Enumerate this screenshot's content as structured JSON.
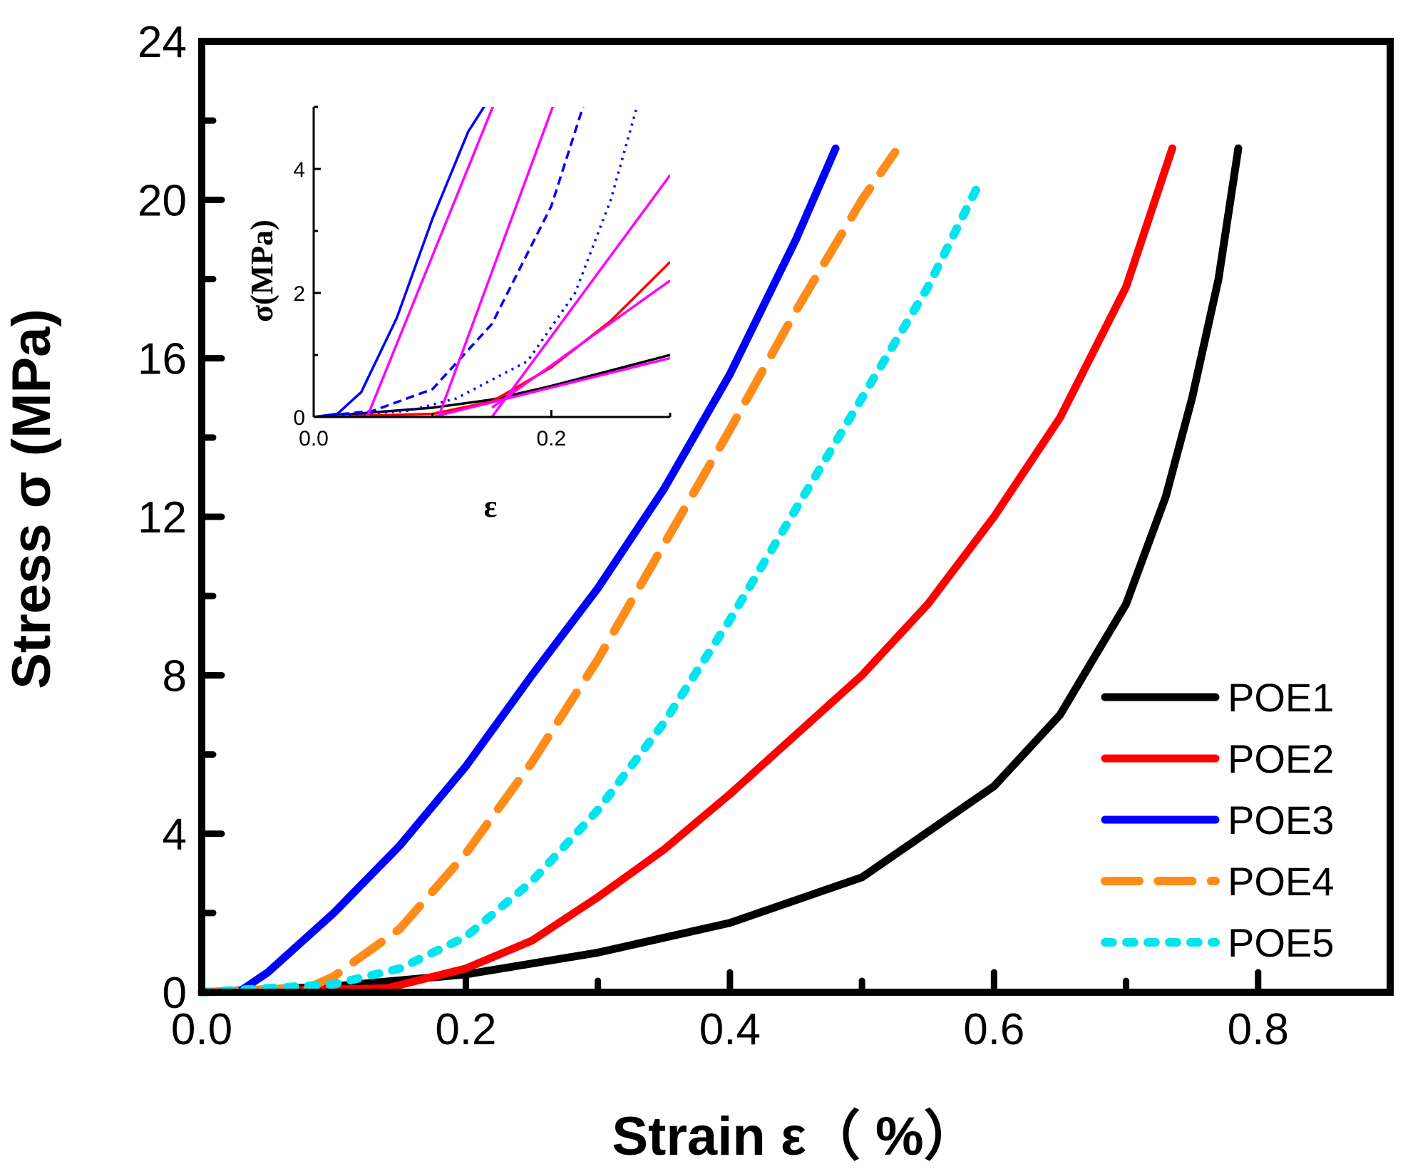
{
  "chart_data": [
    {
      "type": "line",
      "title": "",
      "xlabel": "Strain ε（ %）",
      "ylabel": "Stress σ (MPa)",
      "xlim": [
        0.0,
        0.9
      ],
      "ylim": [
        0,
        24
      ],
      "x_ticks": [
        "0.0",
        "0.2",
        "0.4",
        "0.6",
        "0.8"
      ],
      "y_ticks": [
        "0",
        "4",
        "8",
        "12",
        "16",
        "20",
        "24"
      ],
      "grid": false,
      "legend": "bottom-right",
      "series": [
        {
          "name": "POE1",
          "color": "#000000",
          "style": "solid",
          "points": [
            [
              0.0,
              0
            ],
            [
              0.1,
              0.15
            ],
            [
              0.2,
              0.45
            ],
            [
              0.3,
              1.0
            ],
            [
              0.4,
              1.75
            ],
            [
              0.5,
              2.9
            ],
            [
              0.6,
              5.2
            ],
            [
              0.65,
              7.0
            ],
            [
              0.7,
              9.8
            ],
            [
              0.73,
              12.5
            ],
            [
              0.75,
              15.0
            ],
            [
              0.77,
              18.0
            ],
            [
              0.785,
              21.3
            ]
          ]
        },
        {
          "name": "POE2",
          "color": "#ff0000",
          "style": "solid",
          "points": [
            [
              0.0,
              0
            ],
            [
              0.14,
              0.1
            ],
            [
              0.2,
              0.6
            ],
            [
              0.25,
              1.3
            ],
            [
              0.3,
              2.4
            ],
            [
              0.35,
              3.6
            ],
            [
              0.4,
              5.0
            ],
            [
              0.45,
              6.5
            ],
            [
              0.5,
              8.0
            ],
            [
              0.55,
              9.8
            ],
            [
              0.6,
              12.0
            ],
            [
              0.65,
              14.5
            ],
            [
              0.7,
              17.8
            ],
            [
              0.735,
              21.3
            ]
          ]
        },
        {
          "name": "POE3",
          "color": "#0000ff",
          "style": "solid",
          "points": [
            [
              0.0,
              0
            ],
            [
              0.03,
              0.05
            ],
            [
              0.05,
              0.5
            ],
            [
              0.1,
              2.0
            ],
            [
              0.15,
              3.7
            ],
            [
              0.2,
              5.7
            ],
            [
              0.25,
              8.0
            ],
            [
              0.3,
              10.2
            ],
            [
              0.35,
              12.7
            ],
            [
              0.4,
              15.6
            ],
            [
              0.45,
              19.0
            ],
            [
              0.48,
              21.3
            ]
          ]
        },
        {
          "name": "POE4",
          "color": "#ff8c1a",
          "style": "dashed",
          "points": [
            [
              0.0,
              0
            ],
            [
              0.08,
              0.1
            ],
            [
              0.1,
              0.4
            ],
            [
              0.15,
              1.6
            ],
            [
              0.2,
              3.5
            ],
            [
              0.25,
              5.8
            ],
            [
              0.3,
              8.4
            ],
            [
              0.35,
              11.3
            ],
            [
              0.4,
              14.2
            ],
            [
              0.45,
              17.2
            ],
            [
              0.5,
              20.0
            ],
            [
              0.525,
              21.2
            ]
          ]
        },
        {
          "name": "POE5",
          "color": "#00e5ee",
          "style": "dotted",
          "points": [
            [
              0.0,
              0
            ],
            [
              0.1,
              0.2
            ],
            [
              0.15,
              0.6
            ],
            [
              0.2,
              1.4
            ],
            [
              0.25,
              2.8
            ],
            [
              0.3,
              4.6
            ],
            [
              0.35,
              6.8
            ],
            [
              0.4,
              9.4
            ],
            [
              0.45,
              12.2
            ],
            [
              0.5,
              15.0
            ],
            [
              0.55,
              17.8
            ],
            [
              0.59,
              20.5
            ]
          ]
        }
      ]
    },
    {
      "type": "line",
      "title": "",
      "xlabel": "ε",
      "ylabel": "σ(MPa)",
      "xlim": [
        0.0,
        0.3
      ],
      "ylim": [
        0,
        5
      ],
      "x_ticks": [
        "0.0",
        "0.2"
      ],
      "y_ticks": [
        "0",
        "2",
        "4"
      ],
      "grid": false,
      "series": [
        {
          "color": "#000000",
          "style": "solid",
          "points": [
            [
              0.0,
              0
            ],
            [
              0.1,
              0.15
            ],
            [
              0.15,
              0.28
            ],
            [
              0.2,
              0.5
            ],
            [
              0.25,
              0.75
            ],
            [
              0.3,
              1.0
            ]
          ]
        },
        {
          "color": "#ff0000",
          "style": "solid",
          "points": [
            [
              0.0,
              0
            ],
            [
              0.1,
              0.05
            ],
            [
              0.15,
              0.25
            ],
            [
              0.2,
              0.8
            ],
            [
              0.25,
              1.55
            ],
            [
              0.3,
              2.5
            ]
          ]
        },
        {
          "color": "#0000ff",
          "style": "solid",
          "points": [
            [
              0.0,
              0
            ],
            [
              0.02,
              0.05
            ],
            [
              0.04,
              0.4
            ],
            [
              0.07,
              1.6
            ],
            [
              0.1,
              3.2
            ],
            [
              0.13,
              4.6
            ],
            [
              0.15,
              5.2
            ]
          ]
        },
        {
          "color": "#0000ff",
          "style": "dashed",
          "points": [
            [
              0.0,
              0
            ],
            [
              0.05,
              0.1
            ],
            [
              0.1,
              0.45
            ],
            [
              0.15,
              1.5
            ],
            [
              0.2,
              3.4
            ],
            [
              0.23,
              5.2
            ]
          ]
        },
        {
          "color": "#0000ff",
          "style": "dotted",
          "points": [
            [
              0.0,
              0
            ],
            [
              0.08,
              0.1
            ],
            [
              0.12,
              0.3
            ],
            [
              0.18,
              0.9
            ],
            [
              0.22,
              2.0
            ],
            [
              0.25,
              3.5
            ],
            [
              0.275,
              5.2
            ]
          ]
        },
        {
          "color": "#ff00ff",
          "style": "solid",
          "points": [
            [
              0.045,
              0
            ],
            [
              0.155,
              5.2
            ]
          ]
        },
        {
          "color": "#ff00ff",
          "style": "solid",
          "points": [
            [
              0.105,
              0
            ],
            [
              0.205,
              5.2
            ]
          ]
        },
        {
          "color": "#ff00ff",
          "style": "solid",
          "points": [
            [
              0.15,
              0
            ],
            [
              0.3,
              3.9
            ]
          ]
        },
        {
          "color": "#ff00ff",
          "style": "solid",
          "points": [
            [
              0.15,
              0.15
            ],
            [
              0.3,
              2.2
            ]
          ]
        },
        {
          "color": "#ff00ff",
          "style": "solid",
          "points": [
            [
              0.1,
              0.0
            ],
            [
              0.3,
              0.95
            ]
          ]
        }
      ]
    }
  ]
}
